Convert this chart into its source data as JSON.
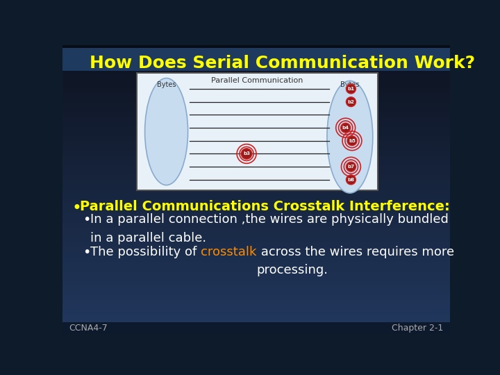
{
  "title": "How Does Serial Communication Work?",
  "title_color": "#FFFF00",
  "title_fontsize": 18,
  "bg_top": "#050810",
  "bg_bottom": "#1a3a5c",
  "footer_left": "CCNA4-7",
  "footer_right": "Chapter 2-1",
  "footer_color": "#aaaaaa",
  "footer_fontsize": 9,
  "image_label": "Parallel Communication",
  "bytes_left": "Bytes",
  "bytes_right": "Bytes",
  "bullet_main": "Parallel Communications Crosstalk Interference:",
  "bullet_main_color": "#FFFF00",
  "bullet1": "In a parallel connection ,the wires are physically bundled\nin a parallel cable.",
  "bullet1_color": "#ffffff",
  "bullet2_prefix": "The possibility of ",
  "bullet2_highlight": "crosstalk",
  "bullet2_suffix": " across the wires requires more\nprocessing.",
  "bullet2_color": "#ffffff",
  "highlight_color": "#FF8C00",
  "bullet_fontsize": 14,
  "sub_bullet_fontsize": 13,
  "line_count": 8,
  "dark_bg": "#0d1b2a",
  "mid_bg": "#1a3050",
  "header_bar": "#1e3a5f",
  "img_border": "#555555"
}
